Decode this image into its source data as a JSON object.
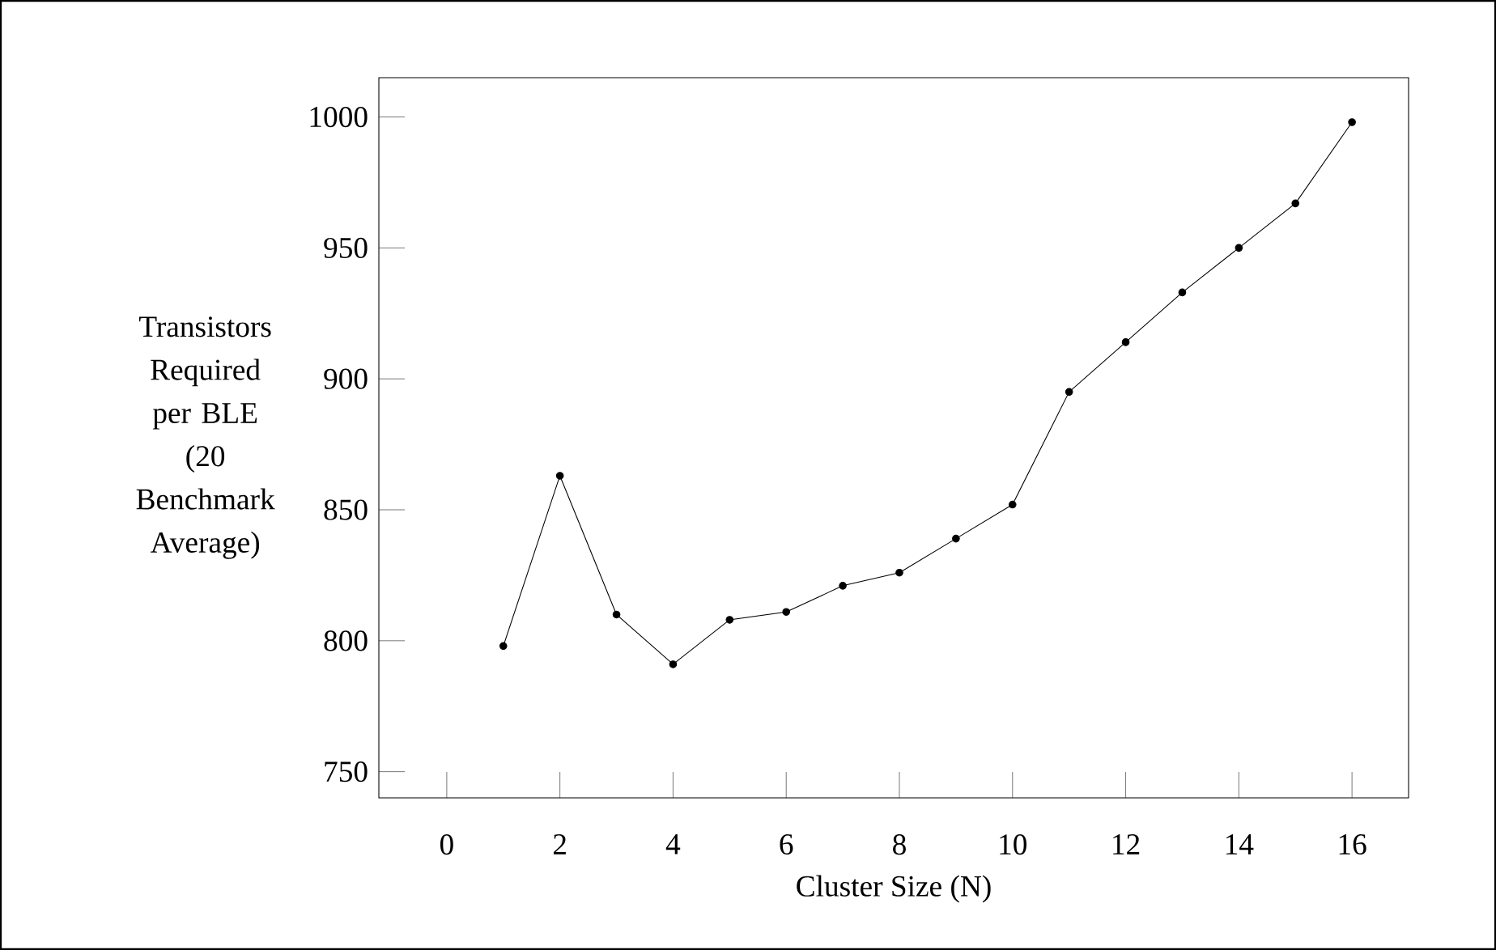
{
  "chart_data": {
    "type": "line",
    "xlabel": "Cluster Size (N)",
    "ylabel": "Transistors Required per BLE (20 Benchmark Average)",
    "x": [
      1,
      2,
      3,
      4,
      5,
      6,
      7,
      8,
      9,
      10,
      11,
      12,
      13,
      14,
      15,
      16
    ],
    "series": [
      {
        "color": "#000000",
        "values": [
          798,
          863,
          810,
          791,
          808,
          811,
          821,
          826,
          839,
          852,
          895,
          914,
          933,
          950,
          967,
          998
        ]
      }
    ],
    "xlim": [
      -1.2,
      17
    ],
    "ylim": [
      740,
      1015
    ],
    "xticks": [
      0,
      2,
      4,
      6,
      8,
      10,
      12,
      14,
      16
    ],
    "yticks": [
      750,
      800,
      850,
      900,
      950,
      1000
    ],
    "grid": false,
    "marker": "circle",
    "line_style": "solid"
  }
}
